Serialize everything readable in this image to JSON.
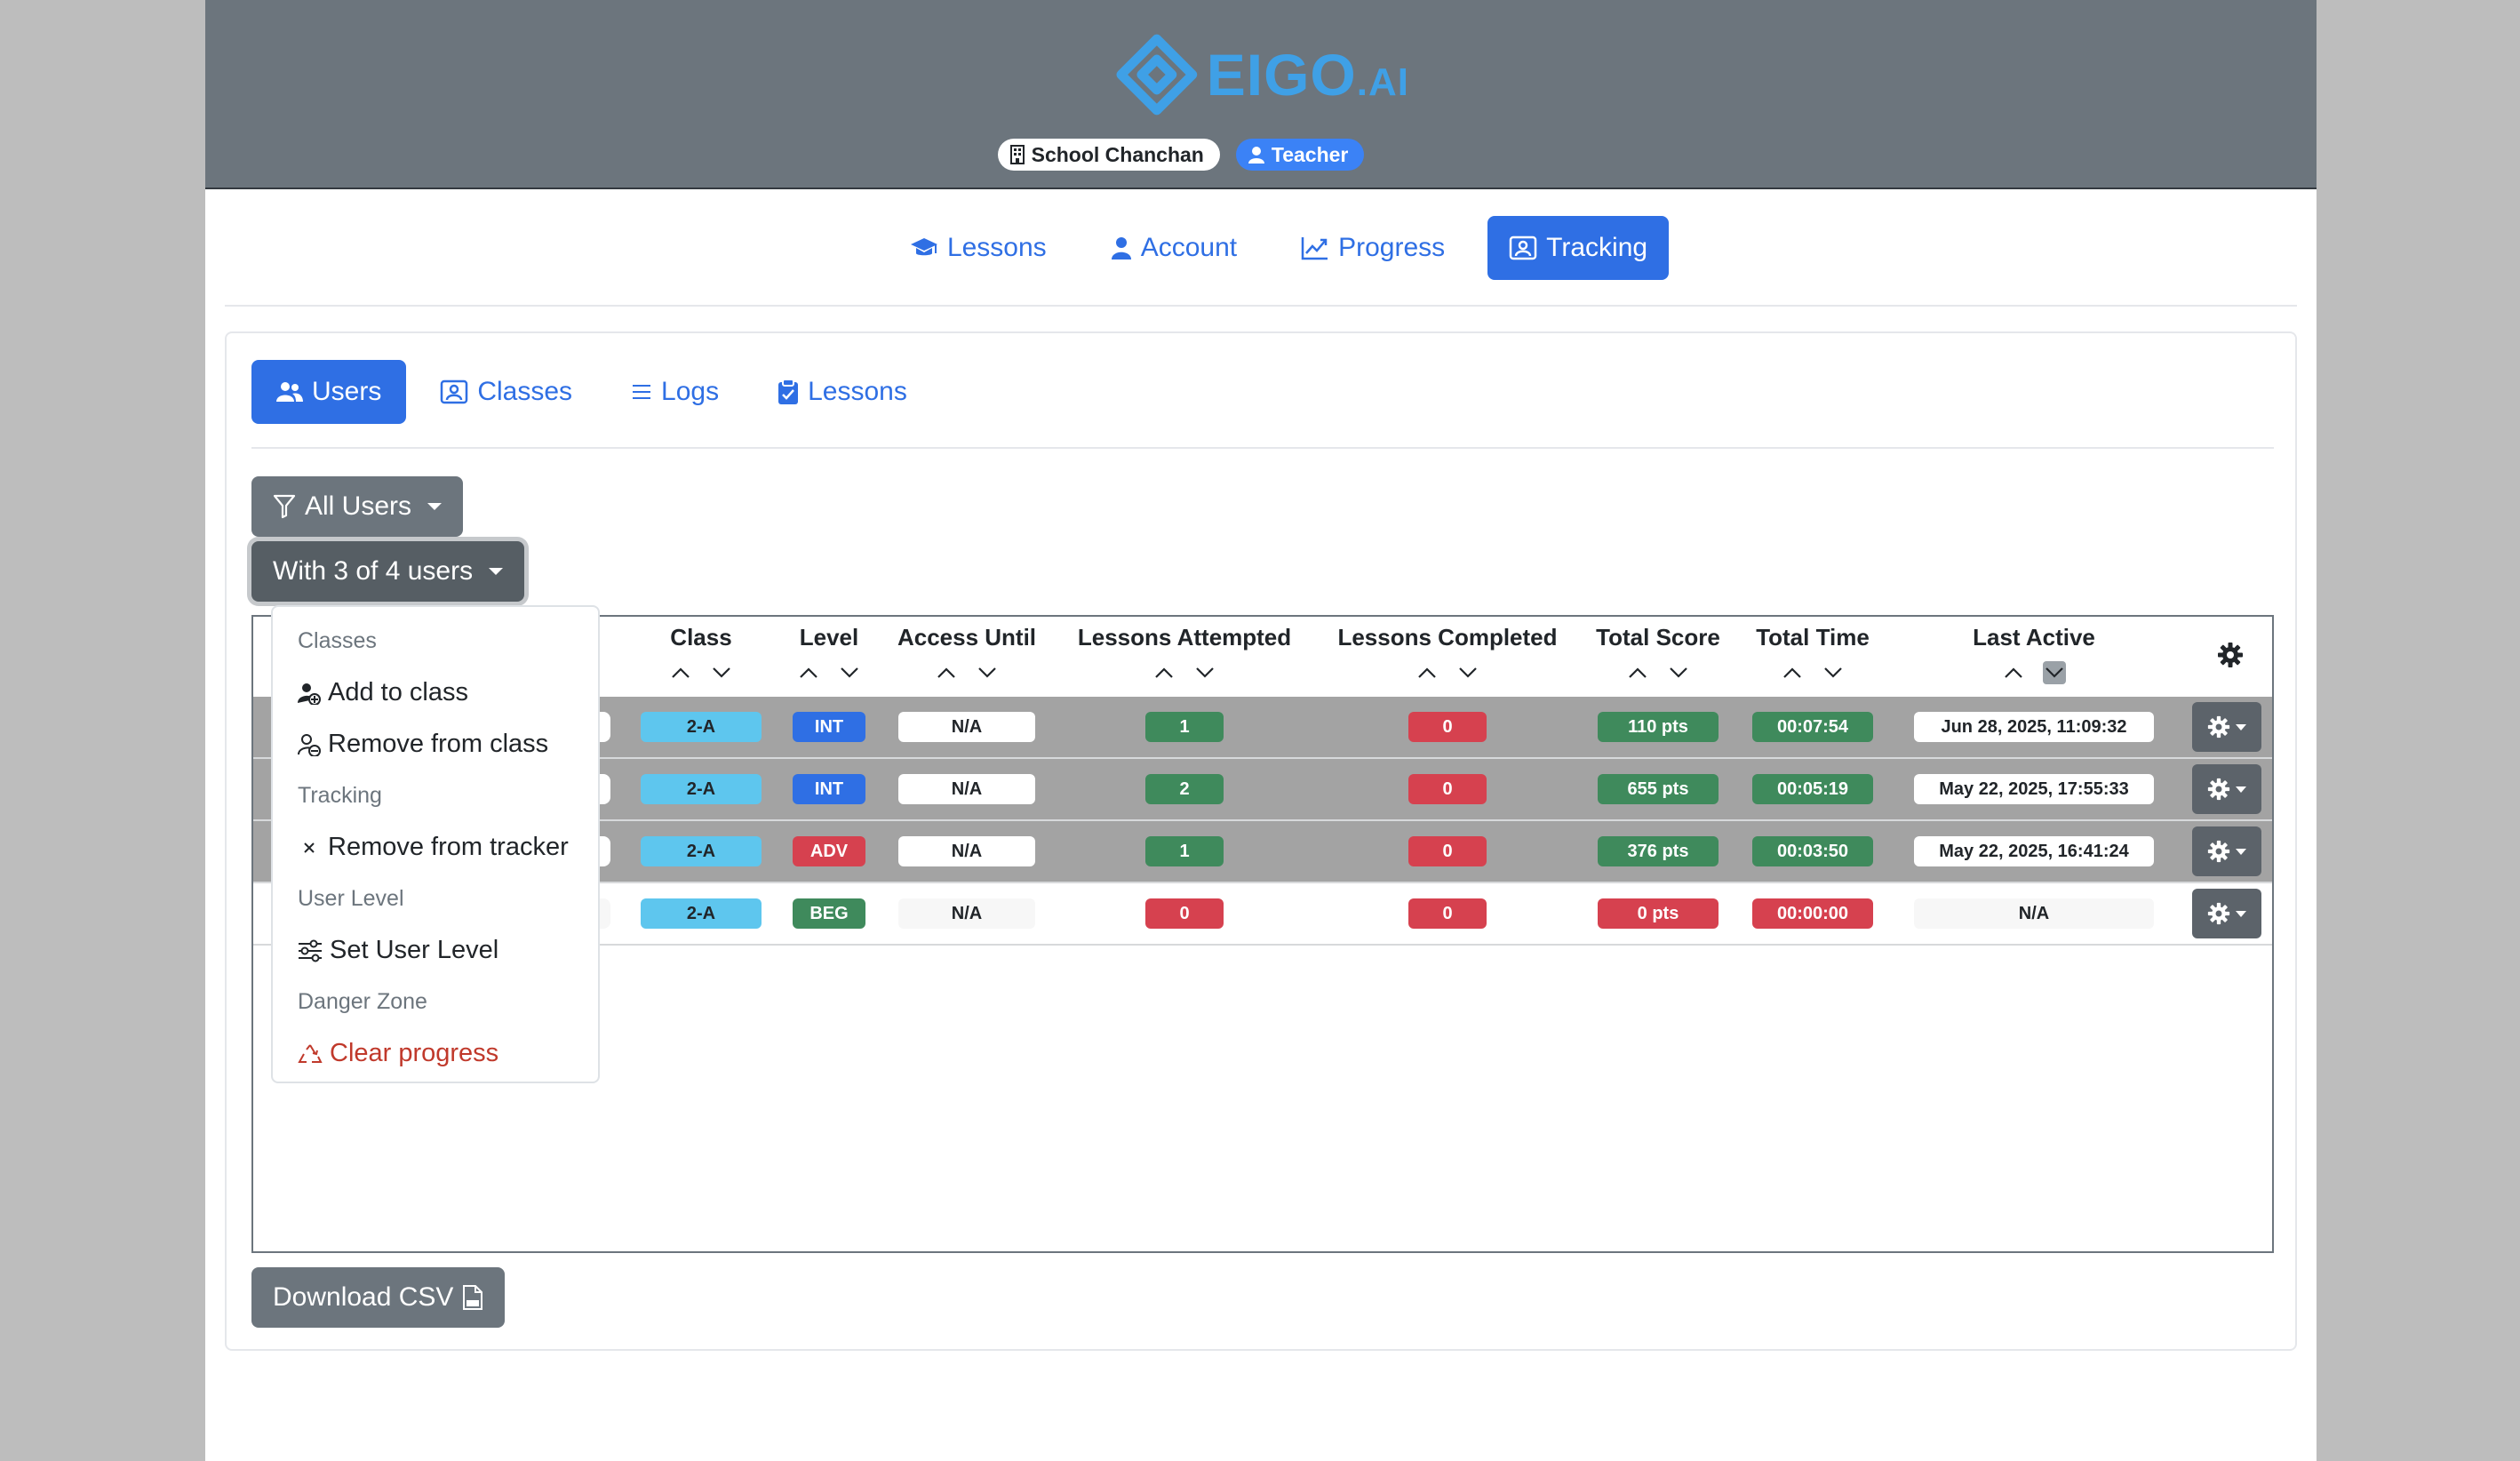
{
  "brand": {
    "name": "EIGO",
    "suffix": ".AI",
    "accent": "#3fa0e6"
  },
  "header": {
    "school": "School Chanchan",
    "role": "Teacher"
  },
  "topnav": [
    {
      "label": "Lessons",
      "icon": "graduation-cap-icon"
    },
    {
      "label": "Account",
      "icon": "person-icon"
    },
    {
      "label": "Progress",
      "icon": "chart-line-icon"
    },
    {
      "label": "Tracking",
      "icon": "person-badge-icon",
      "active": true
    }
  ],
  "subnav": [
    {
      "label": "Users",
      "icon": "people-icon",
      "active": true
    },
    {
      "label": "Classes",
      "icon": "person-badge-icon"
    },
    {
      "label": "Logs",
      "icon": "list-icon"
    },
    {
      "label": "Lessons",
      "icon": "clipboard-icon"
    }
  ],
  "filters": {
    "all_users": "All Users",
    "with_selection": "With 3 of 4 users"
  },
  "dropdown": {
    "classes_header": "Classes",
    "add_to_class": "Add to class",
    "remove_from_class": "Remove from class",
    "tracking_header": "Tracking",
    "remove_from_tracker": "Remove from tracker",
    "user_level_header": "User Level",
    "set_user_level": "Set User Level",
    "danger_header": "Danger Zone",
    "clear_progress": "Clear progress"
  },
  "table": {
    "headers": {
      "class": "Class",
      "level": "Level",
      "access_until": "Access Until",
      "lessons_attempted": "Lessons Attempted",
      "lessons_completed": "Lessons Completed",
      "total_score": "Total Score",
      "total_time": "Total Time",
      "last_active": "Last Active"
    },
    "rows": [
      {
        "class": "2-A",
        "level": "INT",
        "access_until": "N/A",
        "attempted": "1",
        "completed": "0",
        "score": "110 pts",
        "time": "00:07:54",
        "last_active": "Jun 28, 2025, 11:09:32"
      },
      {
        "class": "2-A",
        "level": "INT",
        "access_until": "N/A",
        "attempted": "2",
        "completed": "0",
        "score": "655 pts",
        "time": "00:05:19",
        "last_active": "May 22, 2025, 17:55:33"
      },
      {
        "class": "2-A",
        "level": "ADV",
        "access_until": "N/A",
        "attempted": "1",
        "completed": "0",
        "score": "376 pts",
        "time": "00:03:50",
        "last_active": "May 22, 2025, 16:41:24"
      },
      {
        "class": "2-A",
        "level": "BEG",
        "access_until": "N/A",
        "attempted": "0",
        "completed": "0",
        "score": "0 pts",
        "time": "00:00:00",
        "last_active": "N/A"
      }
    ]
  },
  "download": {
    "label": "Download CSV"
  }
}
